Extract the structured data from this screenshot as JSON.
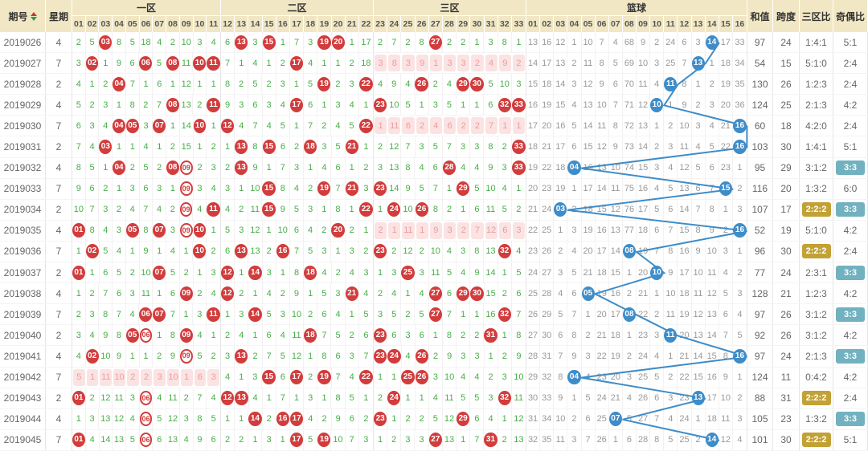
{
  "header": {
    "period_label": "期号",
    "weekday_label": "星期",
    "zone1_label": "一区",
    "zone2_label": "二区",
    "zone3_label": "三区",
    "basketball_label": "篮球",
    "sum_label": "和值",
    "span_label": "跨度",
    "zone_ratio_label": "三区比",
    "odd_even_label": "奇偶比",
    "zone1_cols": [
      "01",
      "02",
      "03",
      "04",
      "05",
      "06",
      "07",
      "08",
      "09",
      "10",
      "11"
    ],
    "zone2_cols": [
      "12",
      "13",
      "14",
      "15",
      "16",
      "17",
      "18",
      "19",
      "20",
      "21",
      "22"
    ],
    "zone3_cols": [
      "23",
      "24",
      "25",
      "26",
      "27",
      "28",
      "29",
      "30",
      "31",
      "32",
      "33"
    ],
    "bb_cols": [
      "01",
      "02",
      "03",
      "04",
      "05",
      "06",
      "07",
      "08",
      "09",
      "10",
      "11",
      "12",
      "13",
      "14",
      "15",
      "16"
    ],
    "sort_icon": "sort-asc-desc"
  },
  "colors": {
    "header_bg": "#F1E7C4",
    "red_ball": "#D23C3C",
    "blue_ball": "#3E8CC8",
    "green_miss": "#47AE47",
    "gray_miss": "#999999",
    "pink_bg": "#FBE3E3",
    "pink_text": "#EC9C9C",
    "gold_highlight": "#C2A135",
    "teal_highlight": "#72B2C0"
  },
  "cell_legend": "plain=miss count, #NN=red hit ball, oNN=hollow red hit ball, pN=pink miss, BNN=blue basketball hit",
  "rows": [
    {
      "p": "2019026",
      "w": "4",
      "z1": [
        "2",
        "5",
        "#03",
        "8",
        "5",
        "18",
        "4",
        "2",
        "10",
        "3",
        "4"
      ],
      "z2": [
        "6",
        "#13",
        "3",
        "#15",
        "1",
        "7",
        "3",
        "#19",
        "#20",
        "1",
        "17"
      ],
      "z3": [
        "2",
        "7",
        "2",
        "8",
        "#27",
        "2",
        "2",
        "1",
        "3",
        "8",
        "1"
      ],
      "bb": [
        "13",
        "16",
        "12",
        "1",
        "10",
        "7",
        "4",
        "68",
        "9",
        "2",
        "24",
        "6",
        "3",
        "B14",
        "17",
        "33"
      ],
      "sum": "97",
      "span": "24",
      "zr": "1:4:1",
      "zrHl": false,
      "oe": "5:1",
      "oeHl": false
    },
    {
      "p": "2019027",
      "w": "7",
      "z1": [
        "3",
        "#02",
        "1",
        "9",
        "6",
        "#06",
        "5",
        "#08",
        "11",
        "#10",
        "#11"
      ],
      "z2": [
        "7",
        "1",
        "4",
        "1",
        "2",
        "#17",
        "4",
        "1",
        "1",
        "2",
        "18"
      ],
      "z3": [
        "p3",
        "p8",
        "p3",
        "p9",
        "p1",
        "p3",
        "p3",
        "p2",
        "p4",
        "p9",
        "p2"
      ],
      "bb": [
        "14",
        "17",
        "13",
        "2",
        "11",
        "8",
        "5",
        "69",
        "10",
        "3",
        "25",
        "7",
        "B13",
        "1",
        "18",
        "34"
      ],
      "sum": "54",
      "span": "15",
      "zr": "5:1:0",
      "zrHl": false,
      "oe": "2:4",
      "oeHl": false
    },
    {
      "p": "2019028",
      "w": "2",
      "z1": [
        "4",
        "1",
        "2",
        "#04",
        "7",
        "1",
        "6",
        "1",
        "12",
        "1",
        "1"
      ],
      "z2": [
        "8",
        "2",
        "5",
        "2",
        "3",
        "1",
        "5",
        "#19",
        "2",
        "3",
        "#22"
      ],
      "z3": [
        "4",
        "9",
        "4",
        "#26",
        "2",
        "4",
        "#29",
        "#30",
        "5",
        "10",
        "3"
      ],
      "bb": [
        "15",
        "18",
        "14",
        "3",
        "12",
        "9",
        "6",
        "70",
        "11",
        "4",
        "B11",
        "8",
        "1",
        "2",
        "19",
        "35"
      ],
      "sum": "130",
      "span": "26",
      "zr": "1:2:3",
      "zrHl": false,
      "oe": "2:4",
      "oeHl": false
    },
    {
      "p": "2019029",
      "w": "4",
      "z1": [
        "5",
        "2",
        "3",
        "1",
        "8",
        "2",
        "7",
        "#08",
        "13",
        "2",
        "#11"
      ],
      "z2": [
        "9",
        "3",
        "6",
        "3",
        "4",
        "#17",
        "6",
        "1",
        "3",
        "4",
        "1"
      ],
      "z3": [
        "#23",
        "10",
        "5",
        "1",
        "3",
        "5",
        "1",
        "1",
        "6",
        "#32",
        "#33"
      ],
      "bb": [
        "16",
        "19",
        "15",
        "4",
        "13",
        "10",
        "7",
        "71",
        "12",
        "B10",
        "1",
        "9",
        "2",
        "3",
        "20",
        "36"
      ],
      "sum": "124",
      "span": "25",
      "zr": "2:1:3",
      "zrHl": false,
      "oe": "4:2",
      "oeHl": false
    },
    {
      "p": "2019030",
      "w": "7",
      "z1": [
        "6",
        "3",
        "4",
        "#04",
        "#05",
        "3",
        "#07",
        "1",
        "14",
        "#10",
        "1"
      ],
      "z2": [
        "#12",
        "4",
        "7",
        "4",
        "5",
        "1",
        "7",
        "2",
        "4",
        "5",
        "#22"
      ],
      "z3": [
        "p1",
        "p11",
        "p6",
        "p2",
        "p4",
        "p6",
        "p2",
        "p2",
        "p7",
        "p1",
        "p1"
      ],
      "bb": [
        "17",
        "20",
        "16",
        "5",
        "14",
        "11",
        "8",
        "72",
        "13",
        "1",
        "2",
        "10",
        "3",
        "4",
        "21",
        "B16"
      ],
      "sum": "60",
      "span": "18",
      "zr": "4:2:0",
      "zrHl": false,
      "oe": "2:4",
      "oeHl": false
    },
    {
      "p": "2019031",
      "w": "2",
      "z1": [
        "7",
        "4",
        "#03",
        "1",
        "1",
        "4",
        "1",
        "2",
        "15",
        "1",
        "2"
      ],
      "z2": [
        "1",
        "#13",
        "8",
        "#15",
        "6",
        "2",
        "#18",
        "3",
        "5",
        "#21",
        "1"
      ],
      "z3": [
        "2",
        "12",
        "7",
        "3",
        "5",
        "7",
        "3",
        "3",
        "8",
        "2",
        "#33"
      ],
      "bb": [
        "18",
        "21",
        "17",
        "6",
        "15",
        "12",
        "9",
        "73",
        "14",
        "2",
        "3",
        "11",
        "4",
        "5",
        "22",
        "B16"
      ],
      "sum": "103",
      "span": "30",
      "zr": "1:4:1",
      "zrHl": false,
      "oe": "5:1",
      "oeHl": false
    },
    {
      "p": "2019032",
      "w": "4",
      "z1": [
        "8",
        "5",
        "1",
        "#04",
        "2",
        "5",
        "2",
        "#08",
        "o09",
        "2",
        "3"
      ],
      "z2": [
        "2",
        "#13",
        "9",
        "1",
        "7",
        "3",
        "1",
        "4",
        "6",
        "1",
        "2"
      ],
      "z3": [
        "3",
        "13",
        "8",
        "4",
        "6",
        "#28",
        "4",
        "4",
        "9",
        "3",
        "#33"
      ],
      "bb": [
        "19",
        "22",
        "18",
        "B04",
        "16",
        "13",
        "10",
        "74",
        "15",
        "3",
        "4",
        "12",
        "5",
        "6",
        "23",
        "1"
      ],
      "sum": "95",
      "span": "29",
      "zr": "3:1:2",
      "zrHl": false,
      "oe": "3:3",
      "oeHl": true
    },
    {
      "p": "2019033",
      "w": "7",
      "z1": [
        "9",
        "6",
        "2",
        "1",
        "3",
        "6",
        "3",
        "1",
        "o09",
        "3",
        "4"
      ],
      "z2": [
        "3",
        "1",
        "10",
        "#15",
        "8",
        "4",
        "2",
        "#19",
        "7",
        "#21",
        "3"
      ],
      "z3": [
        "#23",
        "14",
        "9",
        "5",
        "7",
        "1",
        "#29",
        "5",
        "10",
        "4",
        "1"
      ],
      "bb": [
        "20",
        "23",
        "19",
        "1",
        "17",
        "14",
        "11",
        "75",
        "16",
        "4",
        "5",
        "13",
        "6",
        "7",
        "B15",
        "2"
      ],
      "sum": "116",
      "span": "20",
      "zr": "1:3:2",
      "zrHl": false,
      "oe": "6:0",
      "oeHl": false
    },
    {
      "p": "2019034",
      "w": "2",
      "z1": [
        "10",
        "7",
        "3",
        "2",
        "4",
        "7",
        "4",
        "2",
        "o09",
        "4",
        "#11"
      ],
      "z2": [
        "4",
        "2",
        "11",
        "#15",
        "9",
        "5",
        "3",
        "1",
        "8",
        "1",
        "#22"
      ],
      "z3": [
        "1",
        "#24",
        "10",
        "#26",
        "8",
        "2",
        "1",
        "6",
        "11",
        "5",
        "2"
      ],
      "bb": [
        "21",
        "24",
        "B03",
        "2",
        "18",
        "15",
        "12",
        "76",
        "17",
        "5",
        "6",
        "14",
        "7",
        "8",
        "1",
        "3"
      ],
      "sum": "107",
      "span": "17",
      "zr": "2:2:2",
      "zrHl": true,
      "oe": "3:3",
      "oeHl": true
    },
    {
      "p": "2019035",
      "w": "4",
      "z1": [
        "#01",
        "8",
        "4",
        "3",
        "#05",
        "8",
        "#07",
        "3",
        "o09",
        "#10",
        "1"
      ],
      "z2": [
        "5",
        "3",
        "12",
        "1",
        "10",
        "6",
        "4",
        "2",
        "#20",
        "2",
        "1"
      ],
      "z3": [
        "p2",
        "p1",
        "p11",
        "p1",
        "p9",
        "p3",
        "p2",
        "p7",
        "p12",
        "p6",
        "p3"
      ],
      "bb": [
        "22",
        "25",
        "1",
        "3",
        "19",
        "16",
        "13",
        "77",
        "18",
        "6",
        "7",
        "15",
        "8",
        "9",
        "2",
        "B16"
      ],
      "sum": "52",
      "span": "19",
      "zr": "5:1:0",
      "zrHl": false,
      "oe": "4:2",
      "oeHl": false
    },
    {
      "p": "2019036",
      "w": "7",
      "z1": [
        "1",
        "#02",
        "5",
        "4",
        "1",
        "9",
        "1",
        "4",
        "1",
        "#10",
        "2"
      ],
      "z2": [
        "6",
        "#13",
        "13",
        "2",
        "#16",
        "7",
        "5",
        "3",
        "1",
        "3",
        "2"
      ],
      "z3": [
        "#23",
        "2",
        "12",
        "2",
        "10",
        "4",
        "3",
        "8",
        "13",
        "#32",
        "4"
      ],
      "bb": [
        "23",
        "26",
        "2",
        "4",
        "20",
        "17",
        "14",
        "B08",
        "19",
        "7",
        "8",
        "16",
        "9",
        "10",
        "3",
        "1"
      ],
      "sum": "96",
      "span": "30",
      "zr": "2:2:2",
      "zrHl": true,
      "oe": "2:4",
      "oeHl": false
    },
    {
      "p": "2019037",
      "w": "2",
      "z1": [
        "#01",
        "1",
        "6",
        "5",
        "2",
        "10",
        "#07",
        "5",
        "2",
        "1",
        "3"
      ],
      "z2": [
        "#12",
        "1",
        "#14",
        "3",
        "1",
        "8",
        "#18",
        "4",
        "2",
        "4",
        "3"
      ],
      "z3": [
        "1",
        "3",
        "#25",
        "3",
        "11",
        "5",
        "4",
        "9",
        "14",
        "1",
        "5"
      ],
      "bb": [
        "24",
        "27",
        "3",
        "5",
        "21",
        "18",
        "15",
        "1",
        "20",
        "B10",
        "9",
        "17",
        "10",
        "11",
        "4",
        "2"
      ],
      "sum": "77",
      "span": "24",
      "zr": "2:3:1",
      "zrHl": false,
      "oe": "3:3",
      "oeHl": true
    },
    {
      "p": "2019038",
      "w": "4",
      "z1": [
        "1",
        "2",
        "7",
        "6",
        "3",
        "11",
        "1",
        "6",
        "#09",
        "2",
        "4"
      ],
      "z2": [
        "#12",
        "2",
        "1",
        "4",
        "2",
        "9",
        "1",
        "5",
        "3",
        "#21",
        "4"
      ],
      "z3": [
        "2",
        "4",
        "1",
        "4",
        "#27",
        "6",
        "#29",
        "#30",
        "15",
        "2",
        "6"
      ],
      "bb": [
        "25",
        "28",
        "4",
        "6",
        "B05",
        "19",
        "16",
        "2",
        "21",
        "1",
        "10",
        "18",
        "11",
        "12",
        "5",
        "3"
      ],
      "sum": "128",
      "span": "21",
      "zr": "1:2:3",
      "zrHl": false,
      "oe": "4:2",
      "oeHl": false
    },
    {
      "p": "2019039",
      "w": "7",
      "z1": [
        "2",
        "3",
        "8",
        "7",
        "4",
        "#06",
        "#07",
        "7",
        "1",
        "3",
        "#11"
      ],
      "z2": [
        "1",
        "3",
        "#14",
        "5",
        "3",
        "10",
        "2",
        "6",
        "4",
        "1",
        "5"
      ],
      "z3": [
        "3",
        "5",
        "2",
        "5",
        "#27",
        "7",
        "1",
        "1",
        "16",
        "#32",
        "7"
      ],
      "bb": [
        "26",
        "29",
        "5",
        "7",
        "1",
        "20",
        "17",
        "B08",
        "22",
        "2",
        "11",
        "19",
        "12",
        "13",
        "6",
        "4"
      ],
      "sum": "97",
      "span": "26",
      "zr": "3:1:2",
      "zrHl": false,
      "oe": "3:3",
      "oeHl": true
    },
    {
      "p": "2019040",
      "w": "2",
      "z1": [
        "3",
        "4",
        "9",
        "8",
        "#05",
        "o06",
        "1",
        "8",
        "#09",
        "4",
        "1"
      ],
      "z2": [
        "2",
        "4",
        "1",
        "6",
        "4",
        "11",
        "#18",
        "7",
        "5",
        "2",
        "6"
      ],
      "z3": [
        "#23",
        "6",
        "3",
        "6",
        "1",
        "8",
        "2",
        "2",
        "#31",
        "1",
        "8"
      ],
      "bb": [
        "27",
        "30",
        "6",
        "8",
        "2",
        "21",
        "18",
        "1",
        "23",
        "3",
        "B11",
        "20",
        "13",
        "14",
        "7",
        "5"
      ],
      "sum": "92",
      "span": "26",
      "zr": "3:1:2",
      "zrHl": false,
      "oe": "4:2",
      "oeHl": false
    },
    {
      "p": "2019041",
      "w": "4",
      "z1": [
        "4",
        "#02",
        "10",
        "9",
        "1",
        "1",
        "2",
        "9",
        "o09",
        "5",
        "2"
      ],
      "z2": [
        "3",
        "#13",
        "2",
        "7",
        "5",
        "12",
        "1",
        "8",
        "6",
        "3",
        "7"
      ],
      "z3": [
        "#23",
        "#24",
        "4",
        "#26",
        "2",
        "9",
        "3",
        "3",
        "1",
        "2",
        "9"
      ],
      "bb": [
        "28",
        "31",
        "7",
        "9",
        "3",
        "22",
        "19",
        "2",
        "24",
        "4",
        "1",
        "21",
        "14",
        "15",
        "8",
        "B16"
      ],
      "sum": "97",
      "span": "24",
      "zr": "2:1:3",
      "zrHl": false,
      "oe": "3:3",
      "oeHl": true
    },
    {
      "p": "2019042",
      "w": "7",
      "z1": [
        "p5",
        "p1",
        "p11",
        "p10",
        "p2",
        "p2",
        "p3",
        "p10",
        "p1",
        "p6",
        "p3"
      ],
      "z2": [
        "4",
        "1",
        "3",
        "#15",
        "6",
        "#17",
        "2",
        "#19",
        "7",
        "4",
        "#22"
      ],
      "z3": [
        "1",
        "1",
        "#25",
        "#26",
        "3",
        "10",
        "4",
        "4",
        "2",
        "3",
        "10"
      ],
      "bb": [
        "29",
        "32",
        "8",
        "B04",
        "4",
        "23",
        "20",
        "3",
        "25",
        "5",
        "2",
        "22",
        "15",
        "16",
        "9",
        "1"
      ],
      "sum": "124",
      "span": "11",
      "zr": "0:4:2",
      "zrHl": false,
      "oe": "4:2",
      "oeHl": false
    },
    {
      "p": "2019043",
      "w": "2",
      "z1": [
        "#01",
        "2",
        "12",
        "11",
        "3",
        "o06",
        "4",
        "11",
        "2",
        "7",
        "4"
      ],
      "z2": [
        "#12",
        "#13",
        "4",
        "1",
        "7",
        "1",
        "3",
        "1",
        "8",
        "5",
        "1"
      ],
      "z3": [
        "2",
        "#24",
        "1",
        "1",
        "4",
        "11",
        "5",
        "5",
        "3",
        "#32",
        "11"
      ],
      "bb": [
        "30",
        "33",
        "9",
        "1",
        "5",
        "24",
        "21",
        "4",
        "26",
        "6",
        "3",
        "23",
        "B13",
        "17",
        "10",
        "2"
      ],
      "sum": "88",
      "span": "31",
      "zr": "2:2:2",
      "zrHl": true,
      "oe": "2:4",
      "oeHl": false
    },
    {
      "p": "2019044",
      "w": "4",
      "z1": [
        "1",
        "3",
        "13",
        "12",
        "4",
        "o06",
        "5",
        "12",
        "3",
        "8",
        "5"
      ],
      "z2": [
        "1",
        "1",
        "#14",
        "2",
        "#16",
        "#17",
        "4",
        "2",
        "9",
        "6",
        "2"
      ],
      "z3": [
        "#23",
        "1",
        "2",
        "2",
        "5",
        "12",
        "#29",
        "6",
        "4",
        "1",
        "12"
      ],
      "bb": [
        "31",
        "34",
        "10",
        "2",
        "6",
        "25",
        "B07",
        "5",
        "27",
        "7",
        "4",
        "24",
        "1",
        "18",
        "11",
        "3"
      ],
      "sum": "105",
      "span": "23",
      "zr": "1:3:2",
      "zrHl": false,
      "oe": "3:3",
      "oeHl": true
    },
    {
      "p": "2019045",
      "w": "7",
      "z1": [
        "#01",
        "4",
        "14",
        "13",
        "5",
        "o06",
        "6",
        "13",
        "4",
        "9",
        "6"
      ],
      "z2": [
        "2",
        "2",
        "1",
        "3",
        "1",
        "#17",
        "5",
        "#19",
        "10",
        "7",
        "3"
      ],
      "z3": [
        "1",
        "2",
        "3",
        "3",
        "#27",
        "13",
        "1",
        "7",
        "#31",
        "2",
        "13"
      ],
      "bb": [
        "32",
        "35",
        "11",
        "3",
        "7",
        "26",
        "1",
        "6",
        "28",
        "8",
        "5",
        "25",
        "2",
        "B14",
        "12",
        "4"
      ],
      "sum": "101",
      "span": "30",
      "zr": "2:2:2",
      "zrHl": true,
      "oe": "5:1",
      "oeHl": false
    }
  ]
}
